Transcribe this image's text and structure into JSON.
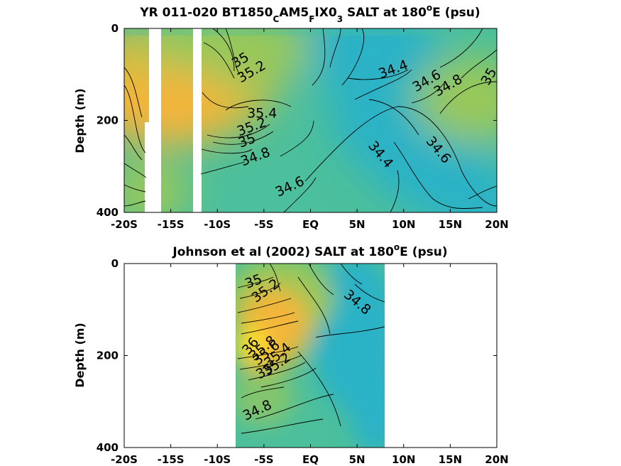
{
  "chart_data": [
    {
      "type": "heatmap",
      "title": {
        "pre": "YR 011-020 BT1850",
        "s1": "C",
        "m1": "AM5",
        "s2": "F",
        "m2": "IX0",
        "s3": "3",
        "post": " SALT at 180",
        "sup": "o",
        "tail": "E (psu)"
      },
      "ylabel": "Depth (m)",
      "x_ticks": [
        "-20S",
        "-15S",
        "-10S",
        "-5S",
        "EQ",
        "5N",
        "10N",
        "15N",
        "20N"
      ],
      "x_tick_values": [
        -20,
        -15,
        -10,
        -5,
        0,
        5,
        10,
        15,
        20
      ],
      "y_ticks": [
        "0",
        "200",
        "400"
      ],
      "y_tick_values": [
        0,
        200,
        400
      ],
      "xlim": [
        -20,
        20
      ],
      "ylim": [
        0,
        400
      ],
      "colorscale": [
        "#2bb2c6",
        "#4cbf9c",
        "#98c85a",
        "#d2be3c",
        "#f3b53a",
        "#fde725"
      ],
      "field_range": [
        34.2,
        36.2
      ],
      "data_gaps": [
        [
          -17.5,
          -16.5
        ],
        [
          -15.3,
          -14.2
        ],
        [
          -12.6,
          -11.9
        ]
      ],
      "contour_labels": [
        {
          "text": "35",
          "x": -7.5,
          "y": 70,
          "rot": -30
        },
        {
          "text": "35.2",
          "x": -6.3,
          "y": 95,
          "rot": -30
        },
        {
          "text": "35.4",
          "x": -5.2,
          "y": 185,
          "rot": 0
        },
        {
          "text": "35.2",
          "x": -6.3,
          "y": 215,
          "rot": -20
        },
        {
          "text": "35",
          "x": -6.8,
          "y": 245,
          "rot": -20
        },
        {
          "text": "34.8",
          "x": -5.9,
          "y": 280,
          "rot": -20
        },
        {
          "text": "34.6",
          "x": -2.2,
          "y": 345,
          "rot": -25
        },
        {
          "text": "34.4",
          "x": 8.9,
          "y": 90,
          "rot": -20
        },
        {
          "text": "34.6",
          "x": 12.5,
          "y": 115,
          "rot": -30
        },
        {
          "text": "34.8",
          "x": 14.8,
          "y": 125,
          "rot": -30
        },
        {
          "text": "35",
          "x": 19.2,
          "y": 105,
          "rot": -60
        },
        {
          "text": "34.4",
          "x": 7.5,
          "y": 275,
          "rot": 50
        },
        {
          "text": "34.6",
          "x": 13.7,
          "y": 265,
          "rot": 50
        }
      ]
    },
    {
      "type": "heatmap",
      "title": {
        "pre": "Johnson et al (2002) SALT at 180",
        "sup": "o",
        "tail": "E (psu)"
      },
      "ylabel": "Depth (m)",
      "x_ticks": [
        "-20S",
        "-15S",
        "-10S",
        "-5S",
        "EQ",
        "5N",
        "10N",
        "15N",
        "20N"
      ],
      "x_tick_values": [
        -20,
        -15,
        -10,
        -5,
        0,
        5,
        10,
        15,
        20
      ],
      "y_ticks": [
        "0",
        "200",
        "400"
      ],
      "y_tick_values": [
        0,
        200,
        400
      ],
      "xlim": [
        -20,
        20
      ],
      "ylim": [
        0,
        400
      ],
      "data_xrange": [
        -8,
        8
      ],
      "contour_labels": [
        {
          "text": "35",
          "x": -6.1,
          "y": 40,
          "rot": -20
        },
        {
          "text": "35.2",
          "x": -4.8,
          "y": 60,
          "rot": -35
        },
        {
          "text": "36",
          "x": -6.4,
          "y": 180,
          "rot": -50
        },
        {
          "text": "35.8",
          "x": -5.1,
          "y": 185,
          "rot": -40
        },
        {
          "text": "35.6",
          "x": -4.7,
          "y": 195,
          "rot": -40
        },
        {
          "text": "35.4",
          "x": -3.5,
          "y": 200,
          "rot": -40
        },
        {
          "text": "35.2",
          "x": -3.6,
          "y": 220,
          "rot": -35
        },
        {
          "text": "35",
          "x": -4.9,
          "y": 235,
          "rot": -30
        },
        {
          "text": "34.8",
          "x": 5.0,
          "y": 85,
          "rot": 40
        },
        {
          "text": "34.8",
          "x": -5.7,
          "y": 320,
          "rot": -25
        }
      ]
    }
  ]
}
